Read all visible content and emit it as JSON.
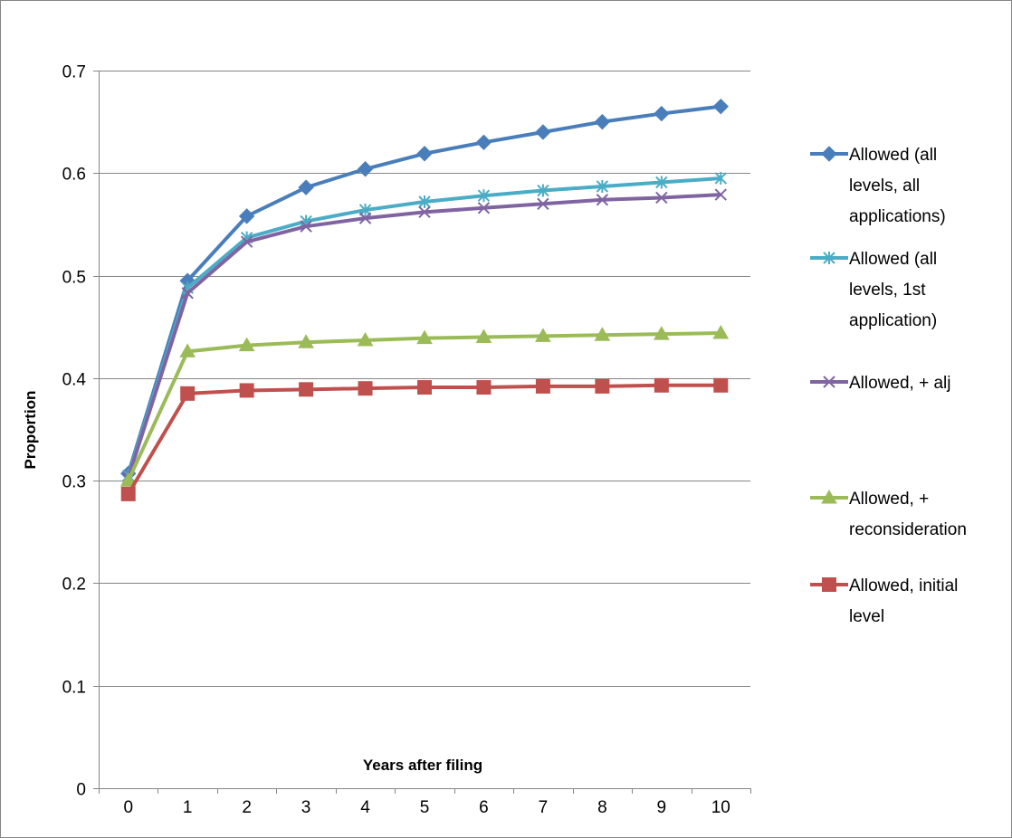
{
  "chart_data": {
    "type": "line",
    "title": "",
    "xlabel": "Years after filing",
    "ylabel": "Proportion",
    "x": [
      0,
      1,
      2,
      3,
      4,
      5,
      6,
      7,
      8,
      9,
      10
    ],
    "x_tick_labels": [
      "0",
      "1",
      "2",
      "3",
      "4",
      "5",
      "6",
      "7",
      "8",
      "9",
      "10"
    ],
    "ylim": [
      0,
      0.7
    ],
    "y_ticks": [
      0,
      0.1,
      0.2,
      0.3,
      0.4,
      0.5,
      0.6,
      0.7
    ],
    "y_tick_labels": [
      "0",
      "0.1",
      "0.2",
      "0.3",
      "0.4",
      "0.5",
      "0.6",
      "0.7"
    ],
    "grid": "horizontal",
    "legend_position": "right",
    "series": [
      {
        "name": "Allowed (all levels, all applications)",
        "legend_lines": [
          "Allowed (all",
          "levels, all",
          "applications)"
        ],
        "color": "#4a7ebb",
        "marker": "diamond",
        "values": [
          0.307,
          0.495,
          0.558,
          0.586,
          0.604,
          0.619,
          0.63,
          0.64,
          0.65,
          0.658,
          0.665
        ]
      },
      {
        "name": "Allowed (all levels, 1st application)",
        "legend_lines": [
          "Allowed (all",
          "levels, 1st",
          "application)"
        ],
        "color": "#4bacc6",
        "marker": "star",
        "values": [
          0.305,
          0.488,
          0.537,
          0.553,
          0.564,
          0.572,
          0.578,
          0.583,
          0.587,
          0.591,
          0.595
        ]
      },
      {
        "name": "Allowed, + alj",
        "legend_lines": [
          "Allowed, + alj"
        ],
        "color": "#8064a2",
        "marker": "x",
        "values": [
          0.303,
          0.483,
          0.533,
          0.548,
          0.556,
          0.562,
          0.566,
          0.57,
          0.574,
          0.576,
          0.579
        ]
      },
      {
        "name": "Allowed, + reconsideration",
        "legend_lines": [
          "Allowed, +",
          "reconsideration"
        ],
        "color": "#9bbb59",
        "marker": "triangle",
        "values": [
          0.3,
          0.426,
          0.432,
          0.435,
          0.437,
          0.439,
          0.44,
          0.441,
          0.442,
          0.443,
          0.444
        ]
      },
      {
        "name": "Allowed, initial level",
        "legend_lines": [
          "Allowed, initial",
          "level"
        ],
        "color": "#c0504d",
        "marker": "square",
        "values": [
          0.287,
          0.385,
          0.388,
          0.389,
          0.39,
          0.391,
          0.391,
          0.392,
          0.392,
          0.393,
          0.393
        ]
      }
    ]
  }
}
